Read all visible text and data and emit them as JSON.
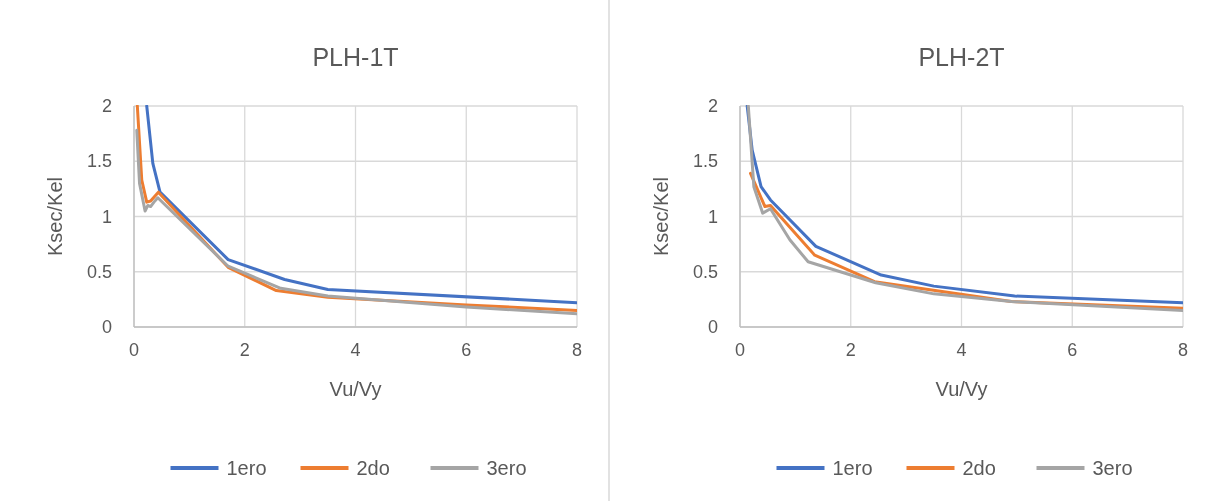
{
  "chart_data": [
    {
      "type": "line",
      "title": "PLH-1T",
      "xlabel": "Vu/Vy",
      "ylabel": "Ksec/Kel",
      "xlim": [
        0,
        8
      ],
      "ylim": [
        0,
        2
      ],
      "xticks": [
        0,
        2,
        4,
        6,
        8
      ],
      "yticks": [
        0,
        0.5,
        1,
        1.5,
        2
      ],
      "grid": true,
      "legend": "bottom",
      "series": [
        {
          "name": "1ero",
          "color": "#4472c4",
          "x": [
            0.23,
            0.34,
            0.47,
            1.7,
            2.72,
            3.5,
            8
          ],
          "values": [
            2.0,
            1.48,
            1.22,
            0.61,
            0.43,
            0.34,
            0.22
          ]
        },
        {
          "name": "2do",
          "color": "#ed7d31",
          "x": [
            0.06,
            0.14,
            0.23,
            0.3,
            0.44,
            1.7,
            2.57,
            3.5,
            6,
            8
          ],
          "values": [
            2.0,
            1.33,
            1.13,
            1.14,
            1.22,
            0.54,
            0.33,
            0.27,
            0.2,
            0.15
          ]
        },
        {
          "name": "3ero",
          "color": "#a5a5a5",
          "x": [
            0.05,
            0.1,
            0.2,
            0.25,
            0.3,
            0.36,
            0.43,
            1.7,
            2.65,
            3.5,
            6,
            8
          ],
          "values": [
            1.78,
            1.3,
            1.05,
            1.1,
            1.09,
            1.13,
            1.17,
            0.55,
            0.35,
            0.28,
            0.18,
            0.12
          ]
        }
      ]
    },
    {
      "type": "line",
      "title": "PLH-2T",
      "xlabel": "Vu/Vy",
      "ylabel": "Ksec/Kel",
      "xlim": [
        0,
        8
      ],
      "ylim": [
        0,
        2
      ],
      "xticks": [
        0,
        2,
        4,
        6,
        8
      ],
      "yticks": [
        0,
        0.5,
        1,
        1.5,
        2
      ],
      "grid": true,
      "legend": "bottom",
      "series": [
        {
          "name": "1ero",
          "color": "#4472c4",
          "x": [
            0.13,
            0.22,
            0.38,
            0.55,
            1.37,
            2.55,
            3.5,
            4.96,
            8
          ],
          "values": [
            2.0,
            1.6,
            1.27,
            1.15,
            0.73,
            0.47,
            0.37,
            0.28,
            0.22
          ]
        },
        {
          "name": "2do",
          "color": "#ed7d31",
          "x": [
            0.19,
            0.45,
            0.55,
            1.35,
            2.43,
            4.9,
            8
          ],
          "values": [
            1.39,
            1.09,
            1.1,
            0.65,
            0.41,
            0.23,
            0.17
          ]
        },
        {
          "name": "3ero",
          "color": "#a5a5a5",
          "x": [
            0.15,
            0.25,
            0.41,
            0.55,
            0.9,
            1.23,
            2.45,
            3.5,
            4.9,
            8
          ],
          "values": [
            2.0,
            1.27,
            1.03,
            1.07,
            0.79,
            0.59,
            0.4,
            0.3,
            0.23,
            0.15
          ]
        }
      ]
    }
  ]
}
